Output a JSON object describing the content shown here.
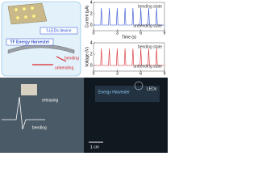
{
  "schematic": {
    "device": "f-LEDs device",
    "harvester": "TF Energy Harvester",
    "bending": "bending",
    "unbending": "unbending"
  },
  "chart_data": [
    {
      "type": "line",
      "y_label": "Current (μA)",
      "x_label": "Time (s)",
      "color": "#2a4fd0",
      "x": [
        0,
        0.9,
        1,
        1.1,
        1.9,
        2,
        2.1,
        2.9,
        3,
        3.1,
        3.9,
        4,
        4.1,
        4.9,
        5,
        5.1,
        5.9,
        6,
        6.1,
        6.9,
        7,
        7.1,
        7.9,
        8,
        8.1,
        9
      ],
      "values": [
        0,
        0,
        3,
        0,
        0,
        3,
        0,
        0,
        3,
        0,
        0,
        3,
        0,
        0,
        3,
        0,
        0,
        3,
        0,
        0,
        3,
        0,
        0,
        3,
        0,
        0
      ],
      "xlim": [
        0,
        9
      ],
      "ylim": [
        -1,
        4
      ],
      "xticks": [
        0,
        3,
        6,
        9
      ],
      "yticks": [
        0,
        2,
        4
      ],
      "annotations": [
        "bending state",
        "unbending state"
      ]
    },
    {
      "type": "line",
      "y_label": "Voltage (V)",
      "color": "#d8262b",
      "x": [
        0,
        0.9,
        1,
        1.1,
        1.9,
        2,
        2.1,
        2.9,
        3,
        3.1,
        3.9,
        4,
        4.1,
        4.9,
        5,
        5.1,
        5.9,
        6,
        6.1,
        6.9,
        7,
        7.1,
        7.9,
        8,
        8.1,
        9
      ],
      "values": [
        0,
        0,
        3,
        0,
        0,
        3,
        0,
        0,
        3,
        0,
        0,
        3,
        0,
        0,
        3,
        0,
        0,
        3,
        0,
        0,
        3,
        0,
        0,
        3,
        0,
        0
      ],
      "xlim": [
        0,
        9
      ],
      "ylim": [
        -1,
        4
      ],
      "xticks": [
        0,
        3,
        6,
        9
      ],
      "yticks": [
        0,
        2,
        4
      ],
      "annotations": [
        "bending state",
        "unbending state"
      ]
    }
  ],
  "photos": {
    "releasing": "releasing",
    "bending": "bending",
    "harvester": "Energy Harvester",
    "leds": "LEDs",
    "scale": "1 cm"
  }
}
